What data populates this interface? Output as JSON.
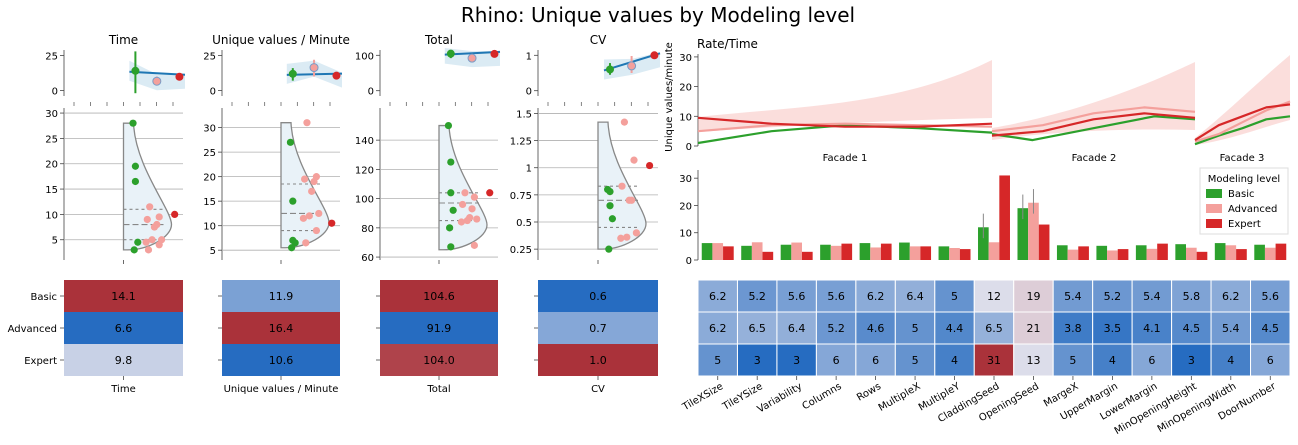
{
  "title": "Rhino: Unique values by Modeling level",
  "levels": [
    "Basic",
    "Advanced",
    "Expert"
  ],
  "colors": {
    "Basic": "#2ca02c",
    "Advanced": "#f4a09c",
    "Expert": "#d62728"
  },
  "chart_data": [
    {
      "type": "scatter",
      "panel": "Time",
      "title": "Time",
      "ylim": [
        -4,
        29
      ],
      "yticks": [
        0,
        25
      ],
      "means": {
        "Basic": 14.1,
        "Advanced": 6.6,
        "Expert": 9.8
      },
      "ci": {
        "Basic": [
          -2,
          28
        ],
        "Advanced": [
          5,
          10
        ],
        "Expert": [
          9.8,
          9.8
        ]
      },
      "violin": {
        "ylim": [
          1,
          31
        ],
        "yticks": [
          5,
          10,
          15,
          20,
          25,
          30
        ],
        "range": [
          3,
          28
        ],
        "quartiles": [
          5,
          8,
          11
        ],
        "points": {
          "Basic": [
            28,
            19.5,
            16.5,
            4.5,
            3
          ],
          "Advanced": [
            11.5,
            9.5,
            9,
            8,
            7.5,
            5,
            5,
            4.5,
            4,
            3
          ],
          "Expert": [
            10
          ]
        }
      },
      "heatmap": {
        "xlabel": "Time",
        "labels": [
          "14.1",
          "6.6",
          "9.8"
        ],
        "values": [
          14.1,
          6.6,
          9.8
        ]
      }
    },
    {
      "type": "scatter",
      "panel": "Unique values / Minute",
      "title": "Unique values / Minute",
      "ylim": [
        -4,
        29
      ],
      "yticks": [
        0,
        25
      ],
      "means": {
        "Basic": 11.9,
        "Advanced": 16.4,
        "Expert": 10.6
      },
      "ci": {
        "Basic": [
          7,
          16
        ],
        "Advanced": [
          10,
          22
        ],
        "Expert": [
          10.6,
          10.6
        ]
      },
      "violin": {
        "ylim": [
          3,
          34
        ],
        "yticks": [
          5,
          10,
          15,
          20,
          25,
          30
        ],
        "range": [
          5.5,
          31
        ],
        "quartiles": [
          9,
          12.5,
          18.5
        ],
        "points": {
          "Basic": [
            27,
            15,
            7,
            6.5,
            5.5
          ],
          "Advanced": [
            31,
            20,
            19.5,
            19,
            17,
            12.5,
            12,
            11.5,
            9,
            6.5
          ],
          "Expert": [
            10.5
          ]
        }
      },
      "heatmap": {
        "xlabel": "Unique values / Minute",
        "labels": [
          "11.9",
          "16.4",
          "10.6"
        ],
        "values": [
          11.9,
          16.4,
          10.6
        ]
      }
    },
    {
      "type": "scatter",
      "panel": "Total",
      "title": "Total",
      "ylim": [
        -15,
        115
      ],
      "yticks": [
        0,
        100
      ],
      "means": {
        "Basic": 104.6,
        "Advanced": 91.9,
        "Expert": 104.0
      },
      "ci": {
        "Basic": [
          92,
          118
        ],
        "Advanced": [
          85,
          99
        ],
        "Expert": [
          104,
          104
        ]
      },
      "violin": {
        "ylim": [
          58,
          162
        ],
        "yticks": [
          60,
          80,
          100,
          120,
          140
        ],
        "range": [
          65,
          150
        ],
        "quartiles": [
          85,
          97,
          104
        ],
        "points": {
          "Basic": [
            150,
            125,
            104,
            92,
            80,
            67
          ],
          "Advanced": [
            104,
            101,
            96,
            93,
            87,
            86,
            85,
            84,
            68
          ],
          "Expert": [
            104
          ]
        }
      },
      "heatmap": {
        "xlabel": "Total",
        "labels": [
          "104.6",
          "91.9",
          "104.0"
        ],
        "values": [
          104.6,
          91.9,
          104.0
        ]
      }
    },
    {
      "type": "scatter",
      "panel": "CV",
      "title": "CV",
      "ylim": [
        -0.15,
        1.15
      ],
      "yticks": [
        0,
        1
      ],
      "means": {
        "Basic": 0.6,
        "Advanced": 0.7,
        "Expert": 1.0
      },
      "ci": {
        "Basic": [
          0.45,
          0.78
        ],
        "Advanced": [
          0.5,
          0.98
        ],
        "Expert": [
          1.0,
          1.0
        ]
      },
      "violin": {
        "ylim": [
          0.15,
          1.55
        ],
        "yticks": [
          0.25,
          0.5,
          0.75,
          1.0,
          1.25,
          1.5
        ],
        "range": [
          0.25,
          1.42
        ],
        "quartiles": [
          0.45,
          0.7,
          0.83
        ],
        "points": {
          "Basic": [
            0.8,
            0.78,
            0.65,
            0.53,
            0.25
          ],
          "Advanced": [
            1.42,
            1.07,
            0.83,
            0.7,
            0.7,
            0.4,
            0.36,
            0.35
          ],
          "Expert": [
            1.02
          ]
        }
      },
      "heatmap": {
        "xlabel": "CV",
        "labels": [
          "0.6",
          "0.7",
          "1.0"
        ],
        "values": [
          0.6,
          0.7,
          1.0
        ]
      }
    },
    {
      "type": "line",
      "panel": "rate",
      "title": "Rate/Time",
      "ylabel": "Unique values/minute",
      "ylim": [
        0,
        33
      ],
      "yticks": [
        0,
        10,
        20,
        30
      ],
      "facets": [
        "Facade 1",
        "Facade 2",
        "Facade 3"
      ],
      "series": [
        {
          "name": "Basic",
          "facets": [
            [
              [
                0,
                1
              ],
              [
                0.5,
                5
              ],
              [
                1,
                7
              ],
              [
                1.5,
                6
              ],
              [
                2,
                4.5
              ]
            ],
            [
              [
                0,
                4
              ],
              [
                0.4,
                2
              ],
              [
                1,
                6
              ],
              [
                1.6,
                10
              ],
              [
                2,
                9
              ]
            ],
            [
              [
                0,
                0.6
              ],
              [
                0.5,
                3.5
              ],
              [
                1,
                6
              ],
              [
                1.5,
                9
              ],
              [
                2,
                10
              ]
            ]
          ]
        },
        {
          "name": "Advanced",
          "facets": [
            [
              [
                0,
                5
              ],
              [
                0.5,
                7
              ],
              [
                1,
                7.5
              ],
              [
                1.5,
                7
              ],
              [
                2,
                6.5
              ]
            ],
            [
              [
                0,
                5
              ],
              [
                0.5,
                7
              ],
              [
                1,
                11
              ],
              [
                1.5,
                13
              ],
              [
                2,
                11.5
              ]
            ],
            [
              [
                0,
                1.5
              ],
              [
                0.5,
                4
              ],
              [
                1,
                8
              ],
              [
                1.5,
                12
              ],
              [
                2,
                15
              ]
            ]
          ]
        },
        {
          "name": "Expert",
          "facets": [
            [
              [
                0,
                9.5
              ],
              [
                0.5,
                7.5
              ],
              [
                1,
                6.5
              ],
              [
                1.5,
                6.5
              ],
              [
                2,
                7.5
              ]
            ],
            [
              [
                0,
                3.5
              ],
              [
                0.5,
                5
              ],
              [
                1,
                9
              ],
              [
                1.5,
                11
              ],
              [
                2,
                9.5
              ]
            ],
            [
              [
                0,
                2
              ],
              [
                0.5,
                7
              ],
              [
                1,
                10
              ],
              [
                1.5,
                13
              ],
              [
                2,
                14
              ]
            ]
          ]
        }
      ]
    },
    {
      "type": "bar",
      "panel": "parameters",
      "ylim": [
        0,
        33
      ],
      "yticks": [
        0,
        10,
        20,
        30
      ],
      "legend_title": "Modeling level",
      "legend": "top-right",
      "categories": [
        "TileXSize",
        "TileYSize",
        "Variability",
        "Columns",
        "Rows",
        "MultipleX",
        "MultipleY",
        "CladdingSeed",
        "OpeningSeed",
        "MargeX",
        "UpperMargin",
        "LowerMargin",
        "MinOpeningHeight",
        "MinOpeningWidth",
        "DoorNumber"
      ],
      "series": [
        {
          "name": "Basic",
          "values": [
            6.2,
            5.2,
            5.6,
            5.6,
            6.2,
            6.4,
            5,
            12,
            19,
            5.4,
            5.2,
            5.4,
            5.8,
            6.2,
            5.6
          ]
        },
        {
          "name": "Advanced",
          "values": [
            6.2,
            6.5,
            6.4,
            5.2,
            4.6,
            5,
            4.4,
            6.5,
            21,
            3.8,
            3.5,
            4.1,
            4.5,
            5.4,
            4.5
          ]
        },
        {
          "name": "Expert",
          "values": [
            5,
            3,
            3,
            6,
            6,
            5,
            4,
            31,
            13,
            5,
            4,
            6,
            3,
            4,
            6
          ]
        }
      ],
      "heatmap": {
        "rows": [
          [
            "6.2",
            "5.2",
            "5.6",
            "5.6",
            "6.2",
            "6.4",
            "5",
            "12",
            "19",
            "5.4",
            "5.2",
            "5.4",
            "5.8",
            "6.2",
            "5.6"
          ],
          [
            "6.2",
            "6.5",
            "6.4",
            "5.2",
            "4.6",
            "5",
            "4.4",
            "6.5",
            "21",
            "3.8",
            "3.5",
            "4.1",
            "4.5",
            "5.4",
            "4.5"
          ],
          [
            "5",
            "3",
            "3",
            "6",
            "6",
            "5",
            "4",
            "31",
            "13",
            "5",
            "4",
            "6",
            "3",
            "4",
            "6"
          ]
        ]
      }
    }
  ]
}
